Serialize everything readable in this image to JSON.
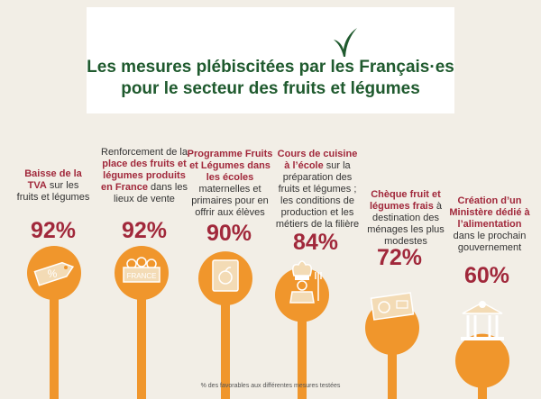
{
  "title": {
    "line1": "Les mesures plébiscitées par les Français·es",
    "line2": "pour le secteur des fruits et légumes"
  },
  "colors": {
    "background": "#f2eee6",
    "title_green": "#1f5a2e",
    "accent_red": "#a1283b",
    "lollipop_orange": "#f0962c",
    "icon_beige": "#f3dbb5"
  },
  "icons": [
    "price-tag-icon",
    "fruit-crate-icon",
    "apple-book-icon",
    "chef-icon",
    "fruit-cheque-icon",
    "ministry-building-icon"
  ],
  "chart_data": {
    "type": "bar",
    "categories": [
      "Baisse de la TVA sur les fruits et légumes",
      "Renforcement de la place des fruits et légumes produits en France dans les lieux de vente",
      "Programme Fruits et Légumes dans les écoles maternelles et primaires pour en offrir aux élèves",
      "Cours de cuisine à l’école sur la préparation des fruits et légumes ; les conditions de production et les métiers de la filière",
      "Chèque fruit et légumes frais à destination des ménages les plus modestes",
      "Création d’un Ministère dédié à l’alimentation dans le prochain gouvernement"
    ],
    "values": [
      92,
      92,
      90,
      84,
      72,
      60
    ],
    "value_labels": [
      "92%",
      "92%",
      "90%",
      "84%",
      "72%",
      "60%"
    ],
    "ylim": [
      0,
      100
    ],
    "footnote": "% des favorables aux différentes mesures testées"
  },
  "measures": [
    {
      "segments": [
        {
          "t": "Baisse de la TVA",
          "h": true
        },
        {
          "t": " sur les fruits et légumes",
          "h": false
        }
      ]
    },
    {
      "segments": [
        {
          "t": "Renforcement de la ",
          "h": false
        },
        {
          "t": "place des fruits et légumes produits en France",
          "h": true
        },
        {
          "t": " dans les lieux de vente",
          "h": false
        }
      ]
    },
    {
      "segments": [
        {
          "t": "Programme Fruits et Légumes dans les écoles",
          "h": true
        },
        {
          "t": " maternelles et primaires pour en offrir aux élèves",
          "h": false
        }
      ]
    },
    {
      "segments": [
        {
          "t": "Cours de cuisine à l’école",
          "h": true
        },
        {
          "t": " sur la préparation des fruits et légumes ; les conditions de production et les métiers de la filière",
          "h": false
        }
      ]
    },
    {
      "segments": [
        {
          "t": "Chèque fruit et légumes frais",
          "h": true
        },
        {
          "t": " à destination des ménages les plus modestes",
          "h": false
        }
      ]
    },
    {
      "segments": [
        {
          "t": "Création d’un Ministère dédié à l’alimentation",
          "h": true
        },
        {
          "t": " dans le prochain gouvernement",
          "h": false
        }
      ]
    }
  ],
  "crate_label": "FRANCE",
  "tag_label": "%"
}
